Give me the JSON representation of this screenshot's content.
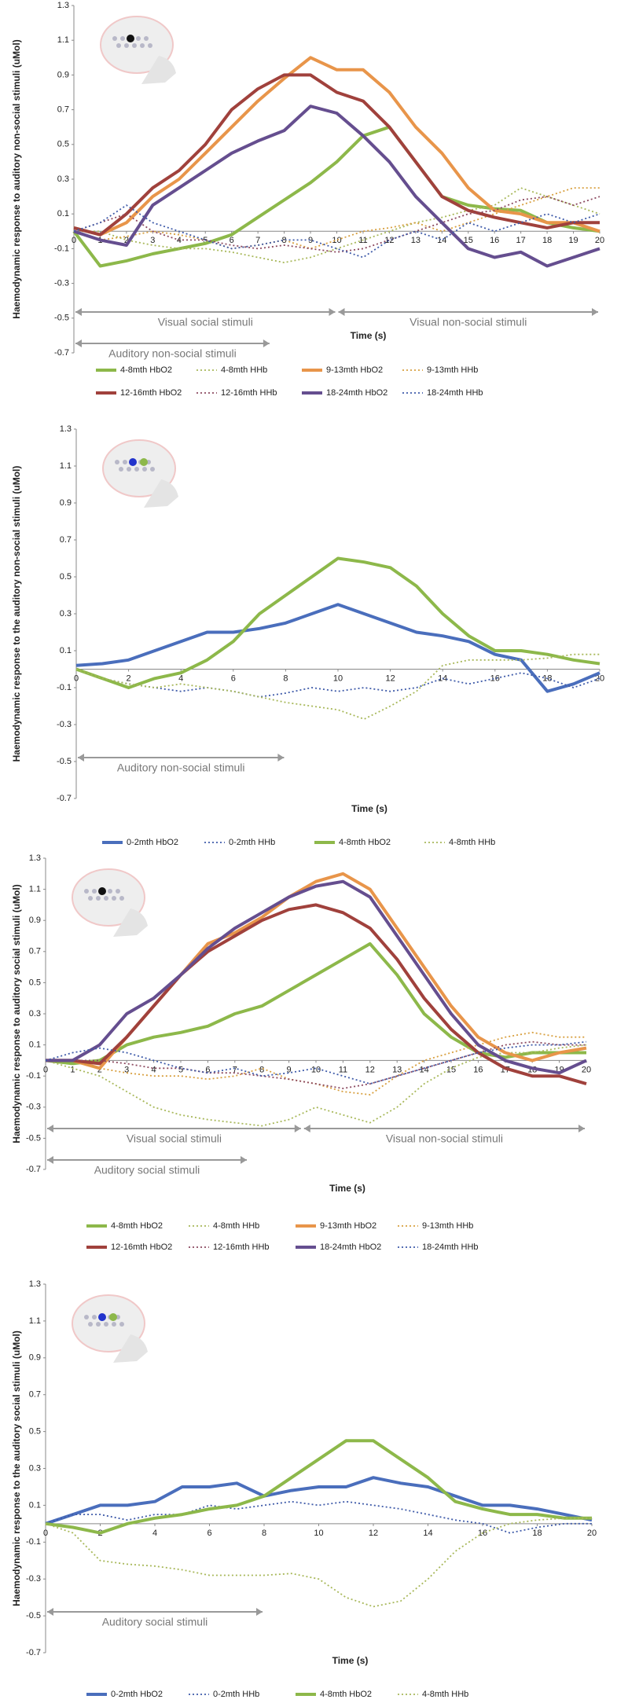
{
  "chart_data": [
    {
      "type": "line",
      "ylabel": "Haemodynamic response to auditory non-social stimuli (uMol)",
      "xlabel": "Time (s)",
      "xlim": [
        0,
        20
      ],
      "ylim": [
        -0.7,
        1.3
      ],
      "xticks": [
        0,
        1,
        2,
        3,
        4,
        5,
        6,
        7,
        8,
        9,
        10,
        11,
        12,
        13,
        14,
        15,
        16,
        17,
        18,
        19,
        20
      ],
      "yticks": [
        -0.7,
        -0.5,
        -0.3,
        -0.1,
        0.1,
        0.3,
        0.5,
        0.7,
        0.9,
        1.1,
        1.3
      ],
      "x": [
        0,
        1,
        2,
        3,
        4,
        5,
        6,
        7,
        8,
        9,
        10,
        11,
        12,
        13,
        14,
        15,
        16,
        17,
        18,
        19,
        20
      ],
      "annotations": [
        {
          "text": "Visual social stimuli",
          "x": [
            0,
            10
          ]
        },
        {
          "text": "Visual non-social stimuli",
          "x": [
            10,
            20
          ]
        },
        {
          "text": "Auditory non-social stimuli",
          "x": [
            0,
            7.5
          ]
        }
      ],
      "series": [
        {
          "name": "4-8mth HbO2",
          "color": "#8db84a",
          "style": "solid",
          "values": [
            0,
            -0.2,
            -0.17,
            -0.13,
            -0.1,
            -0.07,
            -0.02,
            0.08,
            0.18,
            0.28,
            0.4,
            0.55,
            0.6,
            0.4,
            0.2,
            0.15,
            0.13,
            0.12,
            0.05,
            0.02,
            0
          ]
        },
        {
          "name": "4-8mth HHb",
          "color": "#a8b85a",
          "style": "dotted",
          "values": [
            0,
            0,
            -0.05,
            -0.08,
            -0.1,
            -0.1,
            -0.12,
            -0.15,
            -0.18,
            -0.15,
            -0.1,
            -0.05,
            0,
            0.05,
            0.08,
            0.12,
            0.15,
            0.25,
            0.2,
            0.15,
            0.1
          ]
        },
        {
          "name": "9-13mth HbO2",
          "color": "#e8954a",
          "style": "solid",
          "values": [
            0.02,
            -0.02,
            0.05,
            0.2,
            0.3,
            0.45,
            0.6,
            0.75,
            0.88,
            1.0,
            0.93,
            0.93,
            0.8,
            0.6,
            0.45,
            0.25,
            0.12,
            0.1,
            0.05,
            0.05,
            0
          ]
        },
        {
          "name": "9-13mth HHb",
          "color": "#d8a040",
          "style": "dotted",
          "values": [
            0,
            -0.05,
            -0.03,
            0,
            -0.02,
            -0.05,
            -0.1,
            -0.08,
            -0.05,
            -0.1,
            -0.05,
            0,
            0.02,
            0.05,
            0,
            0.05,
            0.1,
            0.15,
            0.2,
            0.25,
            0.25
          ]
        },
        {
          "name": "12-16mth HbO2",
          "color": "#a0413c",
          "style": "solid",
          "values": [
            0.02,
            -0.02,
            0.1,
            0.25,
            0.35,
            0.5,
            0.7,
            0.82,
            0.9,
            0.9,
            0.8,
            0.75,
            0.6,
            0.4,
            0.2,
            0.12,
            0.08,
            0.05,
            0.02,
            0.05,
            0.05
          ]
        },
        {
          "name": "12-16mth HHb",
          "color": "#8c4a60",
          "style": "dotted",
          "values": [
            0,
            0.05,
            0.1,
            0,
            -0.05,
            -0.05,
            -0.08,
            -0.1,
            -0.08,
            -0.1,
            -0.12,
            -0.1,
            -0.05,
            0,
            0.05,
            0.1,
            0.12,
            0.18,
            0.2,
            0.15,
            0.2
          ]
        },
        {
          "name": "18-24mth HbO2",
          "color": "#654e8f",
          "style": "solid",
          "values": [
            0,
            -0.05,
            -0.08,
            0.15,
            0.25,
            0.35,
            0.45,
            0.52,
            0.58,
            0.72,
            0.68,
            0.55,
            0.4,
            0.2,
            0.05,
            -0.1,
            -0.15,
            -0.12,
            -0.2,
            -0.15,
            -0.1
          ]
        },
        {
          "name": "18-24mth HHb",
          "color": "#3f5ba9",
          "style": "dotted",
          "values": [
            0,
            0.05,
            0.15,
            0.05,
            0,
            -0.05,
            -0.1,
            -0.08,
            -0.05,
            -0.05,
            -0.1,
            -0.15,
            -0.05,
            0,
            -0.05,
            0.05,
            0,
            0.05,
            0.1,
            0.05,
            0.1
          ]
        }
      ]
    },
    {
      "type": "line",
      "ylabel": "Haemodynamic response to the auditory non-social stimuli (uMol)",
      "xlabel": "Time (s)",
      "xlim": [
        0,
        20
      ],
      "ylim": [
        -0.7,
        1.3
      ],
      "xticks": [
        0,
        2,
        4,
        6,
        8,
        10,
        12,
        14,
        16,
        18,
        20
      ],
      "yticks": [
        -0.7,
        -0.5,
        -0.3,
        -0.1,
        0.1,
        0.3,
        0.5,
        0.7,
        0.9,
        1.1,
        1.3
      ],
      "x": [
        0,
        1,
        2,
        3,
        4,
        5,
        6,
        7,
        8,
        9,
        10,
        11,
        12,
        13,
        14,
        15,
        16,
        17,
        18,
        19,
        20
      ],
      "annotations": [
        {
          "text": "Auditory non-social stimuli",
          "x": [
            0,
            8
          ]
        }
      ],
      "series": [
        {
          "name": "0-2mth HbO2",
          "color": "#4a6ebc",
          "style": "solid",
          "values": [
            0.02,
            0.03,
            0.05,
            0.1,
            0.15,
            0.2,
            0.2,
            0.22,
            0.25,
            0.3,
            0.35,
            0.3,
            0.25,
            0.2,
            0.18,
            0.15,
            0.08,
            0.05,
            -0.12,
            -0.08,
            -0.02
          ]
        },
        {
          "name": "0-2mth HHb",
          "color": "#3f5ba9",
          "style": "dotted",
          "values": [
            0,
            -0.05,
            -0.08,
            -0.1,
            -0.12,
            -0.1,
            -0.12,
            -0.15,
            -0.13,
            -0.1,
            -0.12,
            -0.1,
            -0.12,
            -0.1,
            -0.05,
            -0.08,
            -0.05,
            -0.02,
            -0.05,
            -0.1,
            -0.05
          ]
        },
        {
          "name": "4-8mth HbO2",
          "color": "#8db84a",
          "style": "solid",
          "values": [
            0,
            -0.05,
            -0.1,
            -0.05,
            -0.02,
            0.05,
            0.15,
            0.3,
            0.4,
            0.5,
            0.6,
            0.58,
            0.55,
            0.45,
            0.3,
            0.18,
            0.1,
            0.1,
            0.08,
            0.05,
            0.03
          ]
        },
        {
          "name": "4-8mth HHb",
          "color": "#a8b85a",
          "style": "dotted",
          "values": [
            0,
            -0.05,
            -0.08,
            -0.1,
            -0.08,
            -0.1,
            -0.12,
            -0.15,
            -0.18,
            -0.2,
            -0.22,
            -0.27,
            -0.2,
            -0.12,
            0.02,
            0.05,
            0.05,
            0.05,
            0.06,
            0.08,
            0.08
          ]
        }
      ]
    },
    {
      "type": "line",
      "ylabel": "Haemodynamic response to auditory social stimuli (uMol)",
      "xlabel": "Time (s)",
      "xlim": [
        0,
        20
      ],
      "ylim": [
        -0.7,
        1.3
      ],
      "xticks": [
        0,
        1,
        2,
        3,
        4,
        5,
        6,
        7,
        8,
        9,
        10,
        11,
        12,
        13,
        14,
        15,
        16,
        17,
        18,
        19,
        20
      ],
      "yticks": [
        -0.7,
        -0.5,
        -0.3,
        -0.1,
        0.1,
        0.3,
        0.5,
        0.7,
        0.9,
        1.1,
        1.3
      ],
      "x": [
        0,
        1,
        2,
        3,
        4,
        5,
        6,
        7,
        8,
        9,
        10,
        11,
        12,
        13,
        14,
        15,
        16,
        17,
        18,
        19,
        20
      ],
      "annotations": [
        {
          "text": "Visual social stimuli",
          "x": [
            0,
            9.5
          ]
        },
        {
          "text": "Visual non-social stimuli",
          "x": [
            9.5,
            20
          ]
        },
        {
          "text": "Auditory social stimuli",
          "x": [
            0,
            7.5
          ]
        }
      ],
      "series": [
        {
          "name": "4-8mth HbO2",
          "color": "#8db84a",
          "style": "solid",
          "values": [
            0,
            -0.02,
            0,
            0.1,
            0.15,
            0.18,
            0.22,
            0.3,
            0.35,
            0.45,
            0.55,
            0.65,
            0.75,
            0.55,
            0.3,
            0.15,
            0.05,
            0.02,
            0.05,
            0.05,
            0.05
          ]
        },
        {
          "name": "4-8mth HHb",
          "color": "#a8b85a",
          "style": "dotted",
          "values": [
            0,
            -0.05,
            -0.1,
            -0.2,
            -0.3,
            -0.35,
            -0.38,
            -0.4,
            -0.42,
            -0.38,
            -0.3,
            -0.35,
            -0.4,
            -0.3,
            -0.15,
            -0.05,
            0.02,
            0.05,
            0.05,
            0.08,
            0.1
          ]
        },
        {
          "name": "9-13mth HbO2",
          "color": "#e8954a",
          "style": "solid",
          "values": [
            0,
            0,
            -0.05,
            0.15,
            0.35,
            0.55,
            0.75,
            0.82,
            0.92,
            1.05,
            1.15,
            1.2,
            1.1,
            0.85,
            0.6,
            0.35,
            0.15,
            0.05,
            0,
            0.05,
            0.08
          ]
        },
        {
          "name": "9-13mth HHb",
          "color": "#d8a040",
          "style": "dotted",
          "values": [
            0,
            0,
            -0.05,
            -0.08,
            -0.1,
            -0.1,
            -0.12,
            -0.1,
            -0.05,
            -0.12,
            -0.15,
            -0.2,
            -0.22,
            -0.1,
            0,
            0.05,
            0.1,
            0.15,
            0.18,
            0.15,
            0.15
          ]
        },
        {
          "name": "12-16mth HbO2",
          "color": "#a0413c",
          "style": "solid",
          "values": [
            0,
            0,
            -0.02,
            0.15,
            0.35,
            0.55,
            0.7,
            0.8,
            0.9,
            0.97,
            1.0,
            0.95,
            0.85,
            0.65,
            0.4,
            0.2,
            0.05,
            -0.05,
            -0.1,
            -0.1,
            -0.15
          ]
        },
        {
          "name": "12-16mth HHb",
          "color": "#8c4a60",
          "style": "dotted",
          "values": [
            0,
            0,
            0,
            -0.02,
            -0.05,
            -0.05,
            -0.08,
            -0.08,
            -0.1,
            -0.12,
            -0.15,
            -0.18,
            -0.15,
            -0.1,
            -0.05,
            0,
            0.05,
            0.1,
            0.12,
            0.1,
            0.1
          ]
        },
        {
          "name": "18-24mth HbO2",
          "color": "#654e8f",
          "style": "solid",
          "values": [
            0,
            0,
            0.1,
            0.3,
            0.4,
            0.55,
            0.72,
            0.85,
            0.95,
            1.05,
            1.12,
            1.15,
            1.05,
            0.8,
            0.55,
            0.3,
            0.1,
            0,
            -0.05,
            -0.08,
            0
          ]
        },
        {
          "name": "18-24mth HHb",
          "color": "#3f5ba9",
          "style": "dotted",
          "values": [
            0,
            0.05,
            0.08,
            0.05,
            0,
            -0.05,
            -0.08,
            -0.05,
            -0.1,
            -0.08,
            -0.05,
            -0.1,
            -0.15,
            -0.1,
            -0.05,
            0,
            0.05,
            0.08,
            0.1,
            0.1,
            0.12
          ]
        }
      ]
    },
    {
      "type": "line",
      "ylabel": "Haemodynamic response to the auditory social stimuli (uMol)",
      "xlabel": "Time (s)",
      "xlim": [
        0,
        20
      ],
      "ylim": [
        -0.7,
        1.3
      ],
      "xticks": [
        0,
        2,
        4,
        6,
        8,
        10,
        12,
        14,
        16,
        18,
        20
      ],
      "yticks": [
        -0.7,
        -0.5,
        -0.3,
        -0.1,
        0.1,
        0.3,
        0.5,
        0.7,
        0.9,
        1.1,
        1.3
      ],
      "x": [
        0,
        1,
        2,
        3,
        4,
        5,
        6,
        7,
        8,
        9,
        10,
        11,
        12,
        13,
        14,
        15,
        16,
        17,
        18,
        19,
        20
      ],
      "annotations": [
        {
          "text": "Auditory social stimuli",
          "x": [
            0,
            8
          ]
        }
      ],
      "series": [
        {
          "name": "0-2mth HbO2",
          "color": "#4a6ebc",
          "style": "solid",
          "values": [
            0,
            0.05,
            0.1,
            0.1,
            0.12,
            0.2,
            0.2,
            0.22,
            0.15,
            0.18,
            0.2,
            0.2,
            0.25,
            0.22,
            0.2,
            0.15,
            0.1,
            0.1,
            0.08,
            0.05,
            0.02
          ]
        },
        {
          "name": "0-2mth HHb",
          "color": "#3f5ba9",
          "style": "dotted",
          "values": [
            0,
            0.05,
            0.05,
            0.02,
            0.05,
            0.05,
            0.1,
            0.08,
            0.1,
            0.12,
            0.1,
            0.12,
            0.1,
            0.08,
            0.05,
            0.02,
            0,
            -0.05,
            -0.02,
            0,
            0
          ]
        },
        {
          "name": "4-8mth HbO2",
          "color": "#8db84a",
          "style": "solid",
          "values": [
            0,
            -0.02,
            -0.05,
            0,
            0.03,
            0.05,
            0.08,
            0.1,
            0.15,
            0.25,
            0.35,
            0.45,
            0.45,
            0.35,
            0.25,
            0.12,
            0.08,
            0.05,
            0.05,
            0.03,
            0.03
          ]
        },
        {
          "name": "4-8mth HHb",
          "color": "#a8b85a",
          "style": "dotted",
          "values": [
            0,
            -0.05,
            -0.2,
            -0.22,
            -0.23,
            -0.25,
            -0.28,
            -0.28,
            -0.28,
            -0.27,
            -0.3,
            -0.4,
            -0.45,
            -0.42,
            -0.3,
            -0.15,
            -0.05,
            0,
            0.02,
            0.03,
            0.03
          ]
        }
      ]
    }
  ]
}
